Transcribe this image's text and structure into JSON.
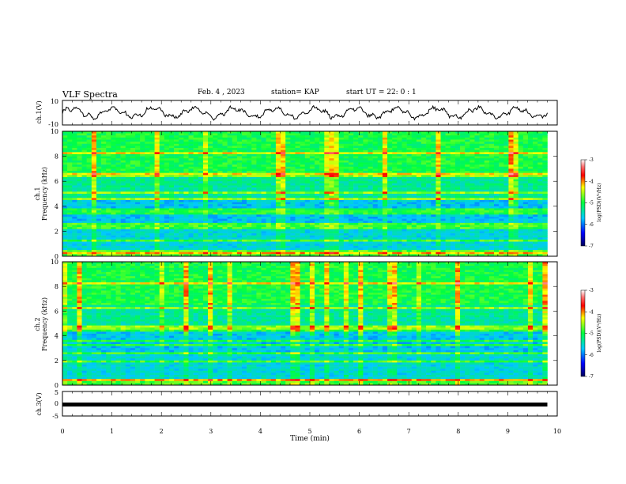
{
  "header": {
    "title": "VLF Spectra",
    "date": "Feb. 4 , 2023",
    "station": "station= KAP",
    "start_time": "start UT =  22: 0  : 1"
  },
  "chart_data": [
    {
      "type": "line",
      "title": "ch.1 waveform",
      "ylabel": "ch.1(V)",
      "ylim": [
        -10,
        10
      ],
      "yticks": [
        "10",
        "-10"
      ],
      "x_range_min": [
        0,
        9.8
      ],
      "description_values": "approx oscillating between -6 and 6 V",
      "color": "#000000"
    },
    {
      "type": "heatmap",
      "title": "ch.1 spectrogram",
      "ylabel": "ch.1\nFrequency (kHz)",
      "ylim": [
        0,
        10
      ],
      "yticks": [
        "0",
        "2",
        "4",
        "6",
        "8",
        "10"
      ],
      "xlim": [
        0,
        10
      ],
      "data_end_min": 9.8,
      "colorbar": {
        "label": "log(PSD)(V²/Hz)",
        "range": [
          -7,
          -3
        ],
        "ticks": [
          "-3",
          "-4",
          "-5",
          "-6",
          "-7"
        ]
      }
    },
    {
      "type": "heatmap",
      "title": "ch.2 spectrogram",
      "ylabel": "ch.2\nFrequency (kHz)",
      "ylim": [
        0,
        10
      ],
      "yticks": [
        "0",
        "2",
        "4",
        "6",
        "8",
        "10"
      ],
      "xlim": [
        0,
        10
      ],
      "data_end_min": 9.8,
      "colorbar": {
        "label": "log(PSD)(V²/Hz)",
        "range": [
          -7,
          -3
        ],
        "ticks": [
          "-3",
          "-4",
          "-5",
          "-6",
          "-7"
        ]
      }
    },
    {
      "type": "line",
      "title": "ch.3 waveform",
      "ylabel": "ch.3(V)",
      "ylim": [
        -5,
        5
      ],
      "yticks": [
        "5",
        "0",
        "-5"
      ],
      "level_v": -0.5,
      "color": "#000000"
    }
  ],
  "xaxis": {
    "label": "Time (min)",
    "ticks": [
      "0",
      "1",
      "2",
      "3",
      "4",
      "5",
      "6",
      "7",
      "8",
      "9",
      "10"
    ]
  },
  "ylabels": {
    "ch1_wave": "ch.1(V)",
    "ch1_freq_a": "ch.1",
    "ch1_freq_b": "Frequency (kHz)",
    "ch2_freq_a": "ch.2",
    "ch2_freq_b": "Frequency (kHz)",
    "ch3_wave": "ch.3(V)"
  },
  "colorbar_label": "log(PSD)(V",
  "colorbar_label_sup": "2",
  "colorbar_label_end": "/Hz)",
  "colors": {
    "ink": "#000000"
  }
}
